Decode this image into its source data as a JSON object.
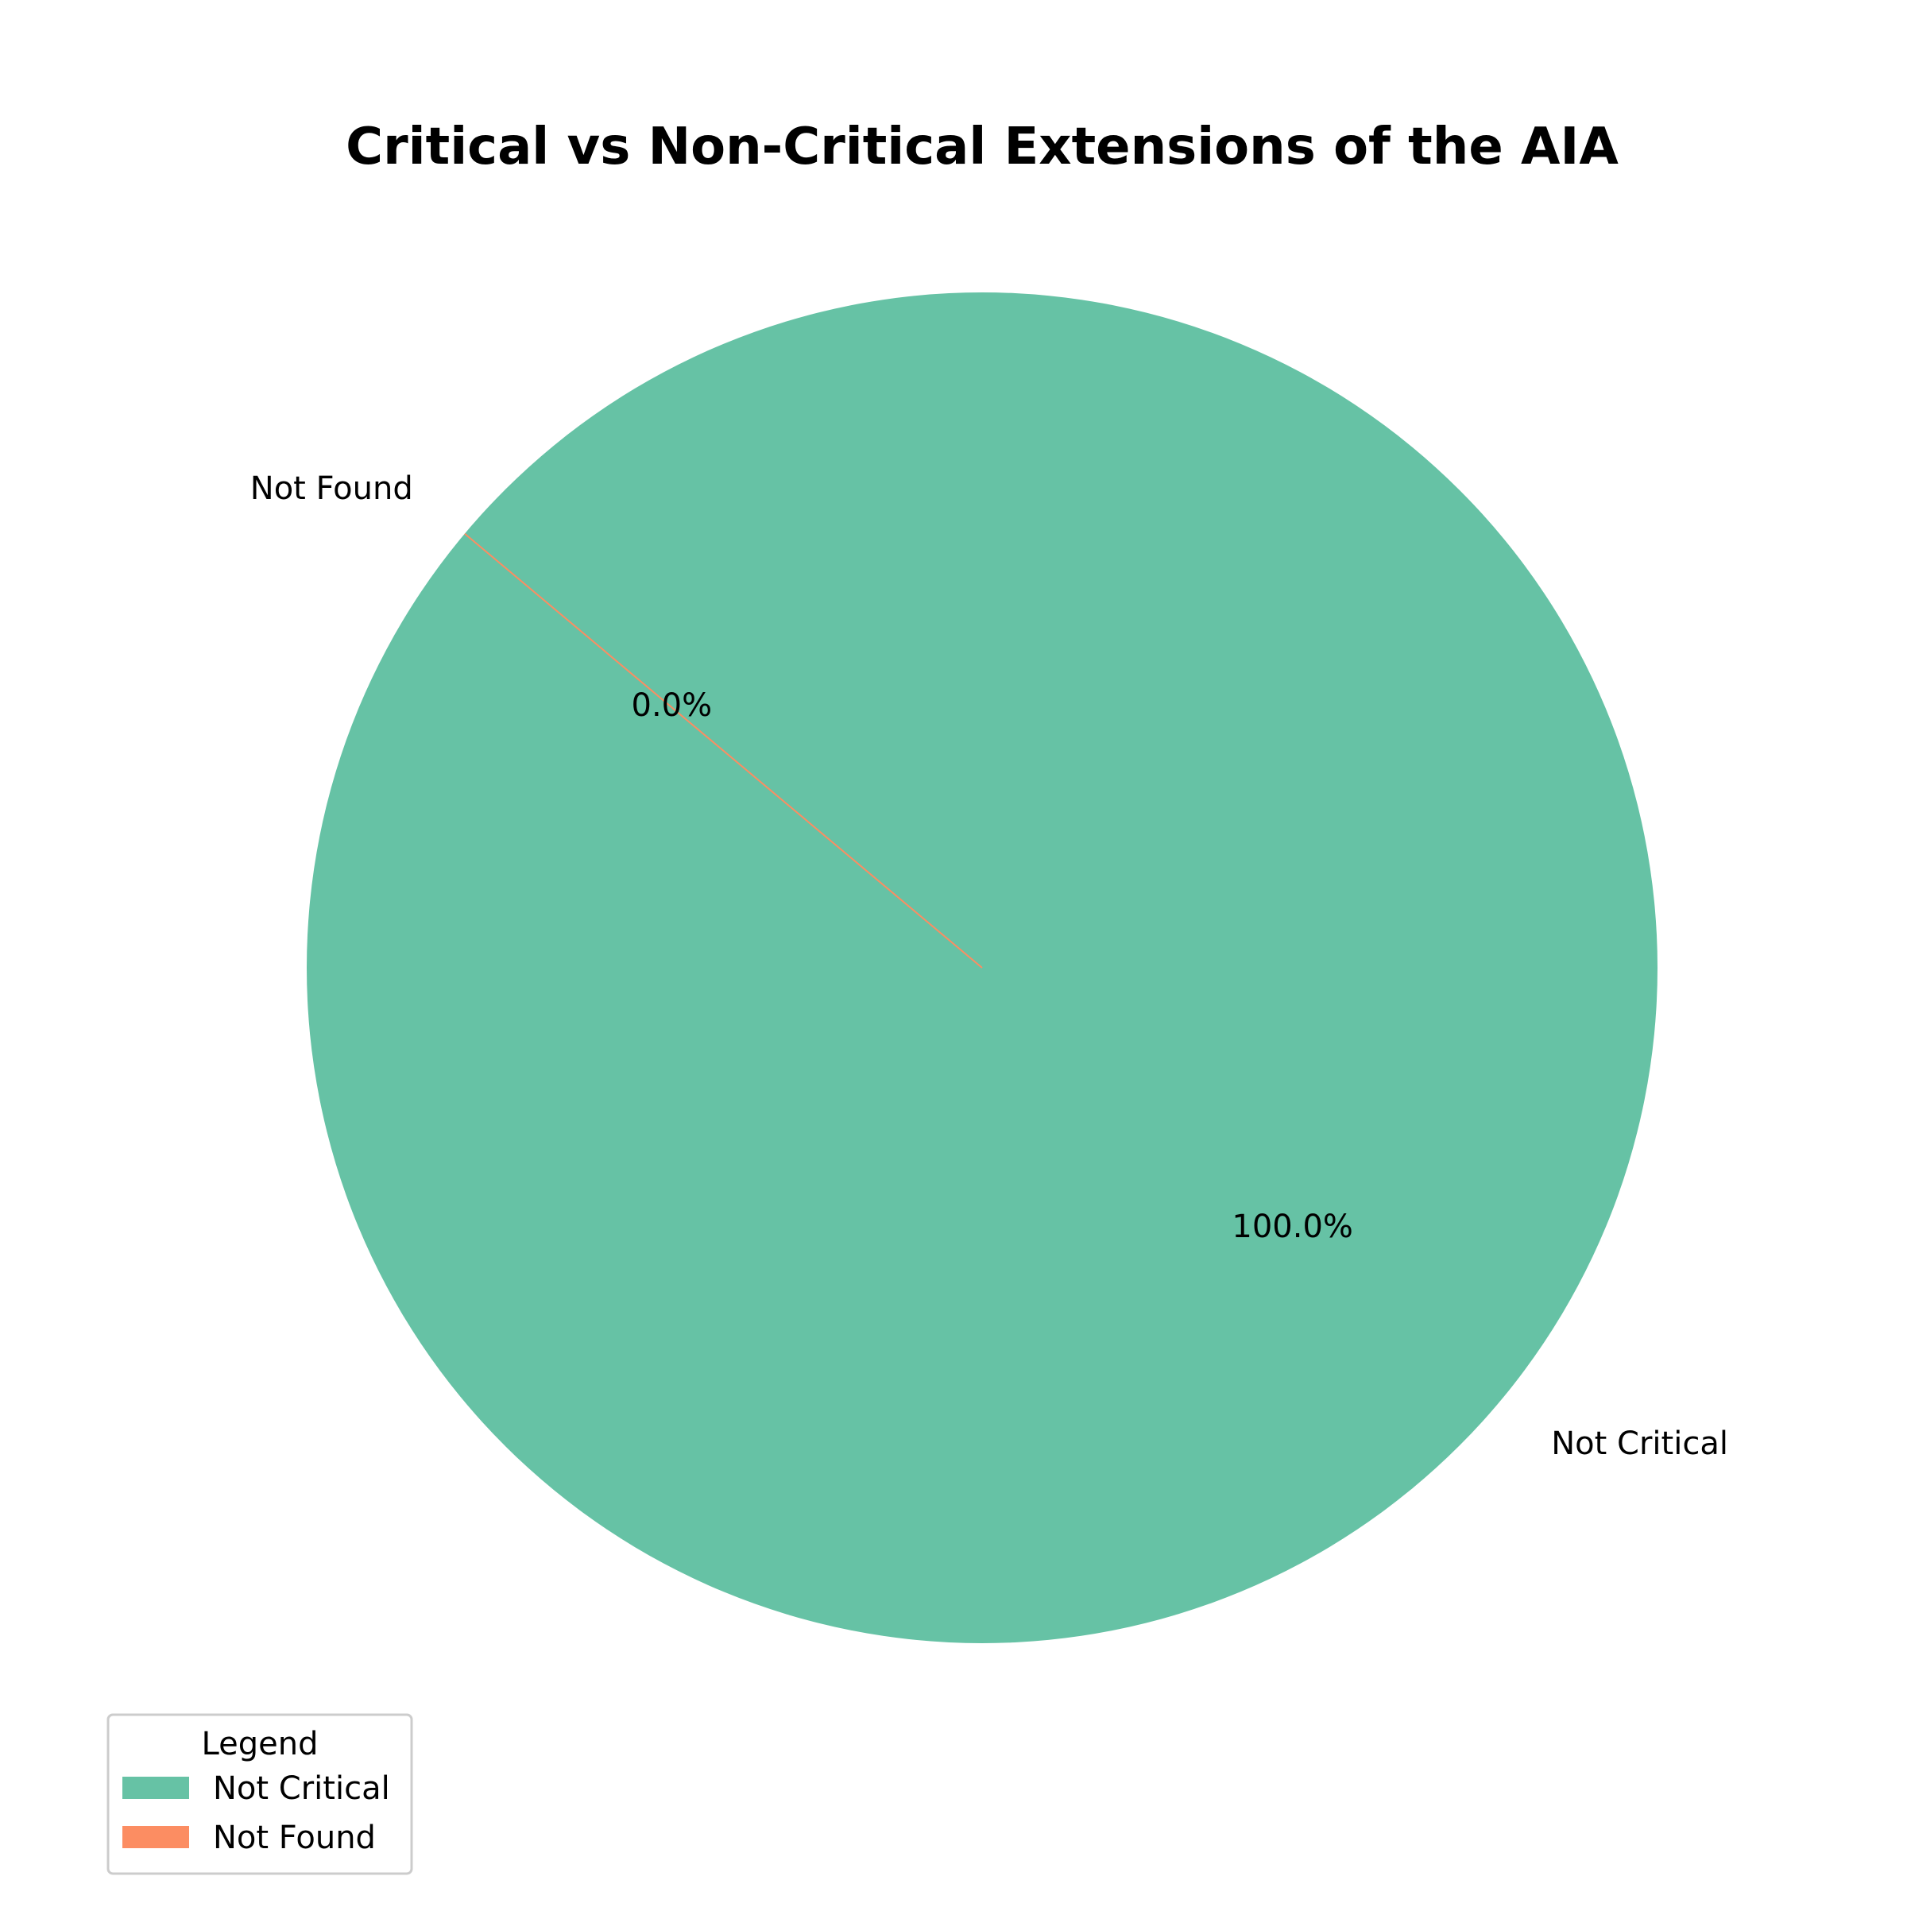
{
  "chart_data": {
    "type": "pie",
    "title": "Critical vs Non-Critical Extensions of the AIA",
    "categories": [
      "Not Critical",
      "Not Found"
    ],
    "values": [
      100.0,
      0.0
    ],
    "percent_labels": [
      "100.0%",
      "0.0%"
    ],
    "colors": [
      "#66c2a5",
      "#fc8d62"
    ],
    "legend": {
      "title": "Legend",
      "placement": "lower-left",
      "entries": [
        "Not Critical",
        "Not Found"
      ]
    }
  }
}
